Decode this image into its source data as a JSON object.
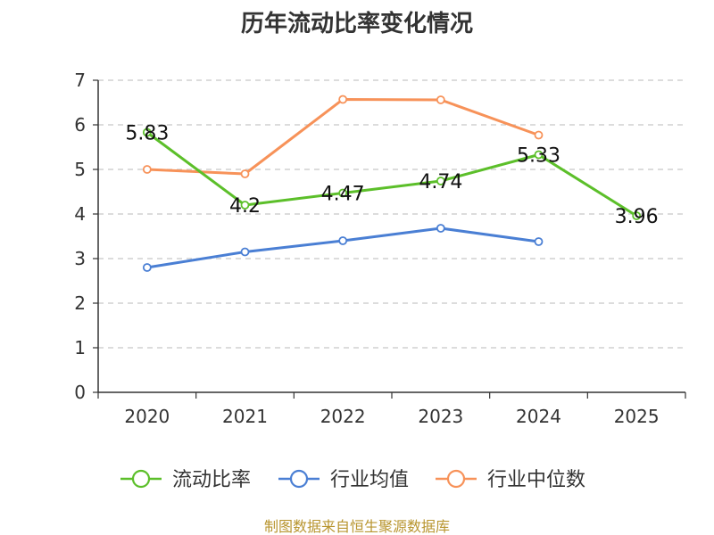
{
  "chart_data": {
    "type": "line",
    "title": "历年流动比率变化情况",
    "categories": [
      "2020",
      "2021",
      "2022",
      "2023",
      "2024",
      "2025"
    ],
    "ylim": [
      0,
      7
    ],
    "yticks": [
      "0",
      "1",
      "2",
      "3",
      "4",
      "5",
      "6",
      "7"
    ],
    "grid": "horizontal-dashed",
    "legend_position": "bottom",
    "series": [
      {
        "name": "流动比率",
        "color": "#5cbf2a",
        "values": [
          5.83,
          4.2,
          4.47,
          4.74,
          5.33,
          3.96
        ],
        "labels": [
          "5.83",
          "4.2",
          "4.47",
          "4.74",
          "5.33",
          "3.96"
        ]
      },
      {
        "name": "行业均值",
        "color": "#4a7fd4",
        "values": [
          2.8,
          3.15,
          3.4,
          3.68,
          3.38,
          null
        ]
      },
      {
        "name": "行业中位数",
        "color": "#f79259",
        "values": [
          5.0,
          4.9,
          6.57,
          6.56,
          5.77,
          null
        ]
      }
    ]
  },
  "source": "制图数据来自恒生聚源数据库"
}
